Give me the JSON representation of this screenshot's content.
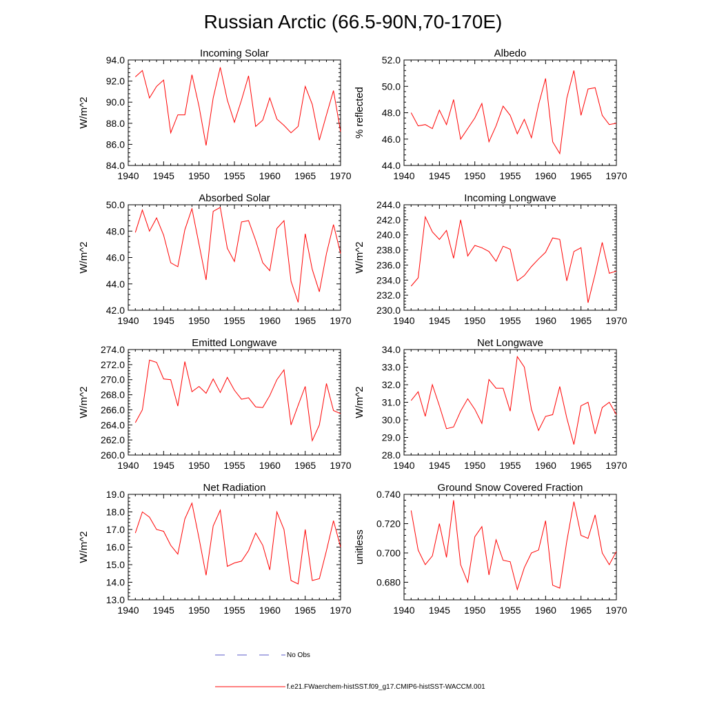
{
  "title": "Russian Arctic (66.5-90N,70-170E)",
  "legend": [
    {
      "label": "No Obs",
      "color": "#5a5ac8",
      "dash": true
    },
    {
      "label": "f.e21.FWaerchem-histSST.f09_g17.CMIP6-histSST-WACCM.001",
      "color": "#ff0000",
      "dash": false
    }
  ],
  "chart_data": [
    {
      "type": "line",
      "title": "Incoming Solar",
      "xlabel": "",
      "ylabel": "W/m^2",
      "xlim": [
        1940,
        1970
      ],
      "ylim": [
        84,
        94
      ],
      "xticks": [
        1940,
        1945,
        1950,
        1955,
        1960,
        1965,
        1970
      ],
      "xtick_labels": [
        "1940",
        "1945",
        "1950",
        "1955",
        "1960",
        "1965",
        "1970"
      ],
      "yticks": [
        84,
        86,
        88,
        90,
        92,
        94
      ],
      "ytick_labels": [
        "84.0",
        "86.0",
        "88.0",
        "90.0",
        "92.0",
        "94.0"
      ],
      "x": [
        1941,
        1942,
        1943,
        1944,
        1945,
        1946,
        1947,
        1948,
        1949,
        1950,
        1951,
        1952,
        1953,
        1954,
        1955,
        1956,
        1957,
        1958,
        1959,
        1960,
        1961,
        1962,
        1963,
        1964,
        1965,
        1966,
        1967,
        1968,
        1969,
        1970
      ],
      "series": [
        {
          "color": "#ff0000",
          "values": [
            92.4,
            93.0,
            90.4,
            91.5,
            92.1,
            87.1,
            88.8,
            88.8,
            92.6,
            89.6,
            85.9,
            90.4,
            93.3,
            90.2,
            88.1,
            90.2,
            92.5,
            87.7,
            88.3,
            90.4,
            88.4,
            87.8,
            87.1,
            87.7,
            91.5,
            89.8,
            86.4,
            88.8,
            91.1,
            87.2
          ]
        }
      ]
    },
    {
      "type": "line",
      "title": "Albedo",
      "xlabel": "",
      "ylabel": "% reflected",
      "xlim": [
        1940,
        1970
      ],
      "ylim": [
        44,
        52
      ],
      "xticks": [
        1940,
        1945,
        1950,
        1955,
        1960,
        1965,
        1970
      ],
      "xtick_labels": [
        "1940",
        "1945",
        "1950",
        "1955",
        "1960",
        "1965",
        "1970"
      ],
      "yticks": [
        44,
        46,
        48,
        50,
        52
      ],
      "ytick_labels": [
        "44.0",
        "46.0",
        "48.0",
        "50.0",
        "52.0"
      ],
      "x": [
        1941,
        1942,
        1943,
        1944,
        1945,
        1946,
        1947,
        1948,
        1949,
        1950,
        1951,
        1952,
        1953,
        1954,
        1955,
        1956,
        1957,
        1958,
        1959,
        1960,
        1961,
        1962,
        1963,
        1964,
        1965,
        1966,
        1967,
        1968,
        1969,
        1970
      ],
      "series": [
        {
          "color": "#ff0000",
          "values": [
            48.0,
            47.0,
            47.1,
            46.8,
            48.2,
            47.1,
            49.0,
            46.0,
            46.8,
            47.6,
            48.7,
            45.8,
            47.0,
            48.5,
            47.8,
            46.4,
            47.5,
            46.1,
            48.6,
            50.6,
            45.8,
            44.9,
            49.1,
            51.2,
            47.8,
            49.8,
            49.9,
            47.8,
            47.1,
            47.2
          ]
        }
      ]
    },
    {
      "type": "line",
      "title": "Absorbed Solar",
      "xlabel": "",
      "ylabel": "W/m^2",
      "xlim": [
        1940,
        1970
      ],
      "ylim": [
        42,
        50
      ],
      "xticks": [
        1940,
        1945,
        1950,
        1955,
        1960,
        1965,
        1970
      ],
      "xtick_labels": [
        "1940",
        "1945",
        "1950",
        "1955",
        "1960",
        "1965",
        "1970"
      ],
      "yticks": [
        42,
        44,
        46,
        48,
        50
      ],
      "ytick_labels": [
        "42.0",
        "44.0",
        "46.0",
        "48.0",
        "50.0"
      ],
      "x": [
        1941,
        1942,
        1943,
        1944,
        1945,
        1946,
        1947,
        1948,
        1949,
        1950,
        1951,
        1952,
        1953,
        1954,
        1955,
        1956,
        1957,
        1958,
        1959,
        1960,
        1961,
        1962,
        1963,
        1964,
        1965,
        1966,
        1967,
        1968,
        1969,
        1970
      ],
      "series": [
        {
          "color": "#ff0000",
          "values": [
            47.9,
            49.6,
            48.0,
            49.0,
            47.7,
            45.6,
            45.3,
            48.1,
            49.7,
            47.0,
            44.3,
            49.5,
            49.8,
            46.7,
            45.7,
            48.7,
            48.8,
            47.3,
            45.6,
            45.0,
            48.2,
            48.8,
            44.2,
            42.6,
            47.8,
            45.1,
            43.4,
            46.3,
            48.5,
            46.3
          ]
        }
      ]
    },
    {
      "type": "line",
      "title": "Incoming Longwave",
      "xlabel": "",
      "ylabel": "W/m^2",
      "xlim": [
        1940,
        1970
      ],
      "ylim": [
        230,
        244
      ],
      "xticks": [
        1940,
        1945,
        1950,
        1955,
        1960,
        1965,
        1970
      ],
      "xtick_labels": [
        "1940",
        "1945",
        "1950",
        "1955",
        "1960",
        "1965",
        "1970"
      ],
      "yticks": [
        230,
        232,
        234,
        236,
        238,
        240,
        242,
        244
      ],
      "ytick_labels": [
        "230.0",
        "232.0",
        "234.0",
        "236.0",
        "238.0",
        "240.0",
        "242.0",
        "244.0"
      ],
      "x": [
        1941,
        1942,
        1943,
        1944,
        1945,
        1946,
        1947,
        1948,
        1949,
        1950,
        1951,
        1952,
        1953,
        1954,
        1955,
        1956,
        1957,
        1958,
        1959,
        1960,
        1961,
        1962,
        1963,
        1964,
        1965,
        1966,
        1967,
        1968,
        1969,
        1970
      ],
      "series": [
        {
          "color": "#ff0000",
          "values": [
            233.2,
            234.3,
            242.4,
            240.4,
            239.4,
            240.6,
            236.9,
            242.0,
            237.2,
            238.6,
            238.3,
            237.8,
            236.5,
            238.5,
            238.1,
            233.9,
            234.6,
            235.8,
            236.8,
            237.7,
            239.6,
            239.4,
            233.9,
            237.8,
            238.3,
            231.0,
            234.8,
            239.0,
            234.9,
            235.2
          ]
        }
      ]
    },
    {
      "type": "line",
      "title": "Emitted Longwave",
      "xlabel": "",
      "ylabel": "W/m^2",
      "xlim": [
        1940,
        1970
      ],
      "ylim": [
        260,
        274
      ],
      "xticks": [
        1940,
        1945,
        1950,
        1955,
        1960,
        1965,
        1970
      ],
      "xtick_labels": [
        "1940",
        "1945",
        "1950",
        "1955",
        "1960",
        "1965",
        "1970"
      ],
      "yticks": [
        260,
        262,
        264,
        266,
        268,
        270,
        272,
        274
      ],
      "ytick_labels": [
        "260.0",
        "262.0",
        "264.0",
        "266.0",
        "268.0",
        "270.0",
        "272.0",
        "274.0"
      ],
      "x": [
        1941,
        1942,
        1943,
        1944,
        1945,
        1946,
        1947,
        1948,
        1949,
        1950,
        1951,
        1952,
        1953,
        1954,
        1955,
        1956,
        1957,
        1958,
        1959,
        1960,
        1961,
        1962,
        1963,
        1964,
        1965,
        1966,
        1967,
        1968,
        1969,
        1970
      ],
      "series": [
        {
          "color": "#ff0000",
          "values": [
            264.3,
            266.0,
            272.6,
            272.3,
            270.1,
            270.0,
            266.5,
            272.4,
            268.4,
            269.1,
            268.2,
            270.1,
            268.3,
            270.3,
            268.6,
            267.4,
            267.6,
            266.4,
            266.3,
            267.9,
            270.0,
            271.3,
            264.0,
            266.6,
            269.1,
            261.9,
            264.0,
            269.5,
            265.9,
            265.5
          ]
        }
      ]
    },
    {
      "type": "line",
      "title": "Net Longwave",
      "xlabel": "",
      "ylabel": "W/m^2",
      "xlim": [
        1940,
        1970
      ],
      "ylim": [
        28,
        34
      ],
      "xticks": [
        1940,
        1945,
        1950,
        1955,
        1960,
        1965,
        1970
      ],
      "xtick_labels": [
        "1940",
        "1945",
        "1950",
        "1955",
        "1960",
        "1965",
        "1970"
      ],
      "yticks": [
        28,
        29,
        30,
        31,
        32,
        33,
        34
      ],
      "ytick_labels": [
        "28.0",
        "29.0",
        "30.0",
        "31.0",
        "32.0",
        "33.0",
        "34.0"
      ],
      "x": [
        1941,
        1942,
        1943,
        1944,
        1945,
        1946,
        1947,
        1948,
        1949,
        1950,
        1951,
        1952,
        1953,
        1954,
        1955,
        1956,
        1957,
        1958,
        1959,
        1960,
        1961,
        1962,
        1963,
        1964,
        1965,
        1966,
        1967,
        1968,
        1969,
        1970
      ],
      "series": [
        {
          "color": "#ff0000",
          "values": [
            31.1,
            31.6,
            30.2,
            32.0,
            30.8,
            29.5,
            29.6,
            30.5,
            31.2,
            30.6,
            29.8,
            32.3,
            31.8,
            31.8,
            30.5,
            33.6,
            33.0,
            30.6,
            29.4,
            30.2,
            30.3,
            31.9,
            30.1,
            28.6,
            30.8,
            31.0,
            29.2,
            30.7,
            31.0,
            30.3
          ]
        }
      ]
    },
    {
      "type": "line",
      "title": "Net Radiation",
      "xlabel": "",
      "ylabel": "W/m^2",
      "xlim": [
        1940,
        1970
      ],
      "ylim": [
        13,
        19
      ],
      "xticks": [
        1940,
        1945,
        1950,
        1955,
        1960,
        1965,
        1970
      ],
      "xtick_labels": [
        "1940",
        "1945",
        "1950",
        "1955",
        "1960",
        "1965",
        "1970"
      ],
      "yticks": [
        13,
        14,
        15,
        16,
        17,
        18,
        19
      ],
      "ytick_labels": [
        "13.0",
        "14.0",
        "15.0",
        "16.0",
        "17.0",
        "18.0",
        "19.0"
      ],
      "x": [
        1941,
        1942,
        1943,
        1944,
        1945,
        1946,
        1947,
        1948,
        1949,
        1950,
        1951,
        1952,
        1953,
        1954,
        1955,
        1956,
        1957,
        1958,
        1959,
        1960,
        1961,
        1962,
        1963,
        1964,
        1965,
        1966,
        1967,
        1968,
        1969,
        1970
      ],
      "series": [
        {
          "color": "#ff0000",
          "values": [
            16.8,
            18.0,
            17.7,
            17.0,
            16.9,
            16.1,
            15.6,
            17.6,
            18.5,
            16.5,
            14.4,
            17.2,
            18.1,
            14.9,
            15.1,
            15.2,
            15.8,
            16.8,
            16.1,
            14.7,
            18.0,
            17.0,
            14.1,
            13.9,
            17.0,
            14.1,
            14.2,
            15.8,
            17.5,
            16.0
          ]
        }
      ]
    },
    {
      "type": "line",
      "title": "Ground Snow Covered Fraction",
      "xlabel": "",
      "ylabel": "unitless",
      "xlim": [
        1940,
        1970
      ],
      "ylim": [
        0.668,
        0.74
      ],
      "xticks": [
        1940,
        1945,
        1950,
        1955,
        1960,
        1965,
        1970
      ],
      "xtick_labels": [
        "1940",
        "1945",
        "1950",
        "1955",
        "1960",
        "1965",
        "1970"
      ],
      "yticks": [
        0.68,
        0.7,
        0.72,
        0.74
      ],
      "ytick_labels": [
        "0.680",
        "0.700",
        "0.720",
        "0.740"
      ],
      "x": [
        1941,
        1942,
        1943,
        1944,
        1945,
        1946,
        1947,
        1948,
        1949,
        1950,
        1951,
        1952,
        1953,
        1954,
        1955,
        1956,
        1957,
        1958,
        1959,
        1960,
        1961,
        1962,
        1963,
        1964,
        1965,
        1966,
        1967,
        1968,
        1969,
        1970
      ],
      "series": [
        {
          "color": "#ff0000",
          "values": [
            0.729,
            0.702,
            0.692,
            0.698,
            0.72,
            0.697,
            0.736,
            0.692,
            0.68,
            0.711,
            0.718,
            0.685,
            0.709,
            0.695,
            0.694,
            0.675,
            0.69,
            0.7,
            0.702,
            0.722,
            0.678,
            0.676,
            0.708,
            0.735,
            0.712,
            0.71,
            0.726,
            0.7,
            0.692,
            0.701
          ]
        }
      ]
    }
  ]
}
